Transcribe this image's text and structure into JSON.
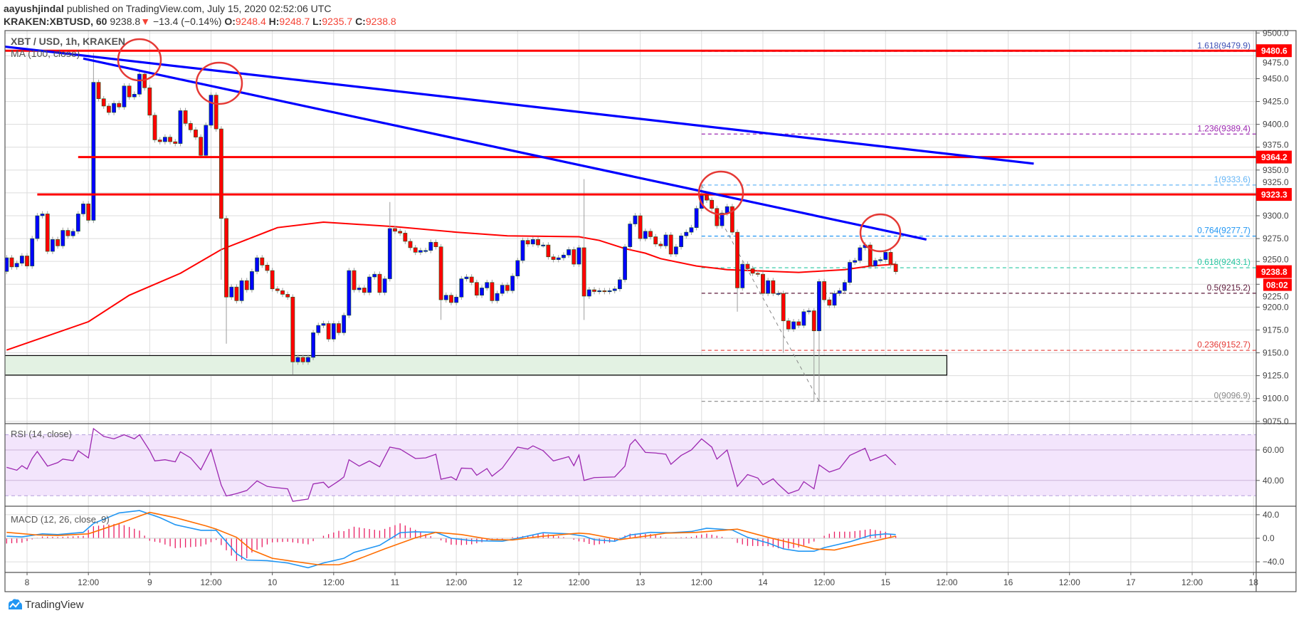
{
  "header": {
    "author": "aayushjindal",
    "published": "published on TradingView.com, July 15, 2020 02:52:06 UTC",
    "symbol": "KRAKEN:XBTUSD, 60",
    "last": "9238.8",
    "change": "−13.4 (−0.14%)",
    "o_label": "O:",
    "o": "9248.4",
    "h_label": "H:",
    "h": "9248.7",
    "l_label": "L:",
    "l": "9235.7",
    "c_label": "C:",
    "c": "9238.8"
  },
  "footer": {
    "brand": "TradingView"
  },
  "colors": {
    "up": "#0000ff",
    "down": "#ff0000",
    "ma": "#ff0000",
    "trend": "#0000ff",
    "level": "#ff0000",
    "rsi": "#9c27b0",
    "macd": "#2196f3",
    "signal": "#ff6d00",
    "hist": "#e91e63",
    "zone": "#e3f2e3"
  },
  "chart_data": {
    "type": "candlestick",
    "title": "XBT / USD, 1h, KRAKEN",
    "ma_label": "MA (100, close)",
    "ylim": [
      9075,
      9500
    ],
    "yticks": [
      "9500.0",
      "9475.0",
      "9450.0",
      "9425.0",
      "9400.0",
      "9375.0",
      "9350.0",
      "9325.0",
      "9300.0",
      "9275.0",
      "9250.0",
      "9225.0",
      "9200.0",
      "9175.0",
      "9150.0",
      "9125.0",
      "9100.0",
      "9075.0"
    ],
    "xticks": [
      {
        "i": 4,
        "label": "8"
      },
      {
        "i": 16,
        "label": "12:00"
      },
      {
        "i": 28,
        "label": "9"
      },
      {
        "i": 40,
        "label": "12:00"
      },
      {
        "i": 52,
        "label": "10"
      },
      {
        "i": 64,
        "label": "12:00"
      },
      {
        "i": 76,
        "label": "11"
      },
      {
        "i": 88,
        "label": "12:00"
      },
      {
        "i": 100,
        "label": "12"
      },
      {
        "i": 112,
        "label": "12:00"
      },
      {
        "i": 124,
        "label": "13"
      },
      {
        "i": 136,
        "label": "12:00"
      },
      {
        "i": 148,
        "label": "14"
      },
      {
        "i": 160,
        "label": "12:00"
      },
      {
        "i": 172,
        "label": "15"
      },
      {
        "i": 184,
        "label": "12:00"
      },
      {
        "i": 196,
        "label": "16"
      },
      {
        "i": 208,
        "label": "12:00"
      },
      {
        "i": 220,
        "label": "17"
      },
      {
        "i": 232,
        "label": "12:00"
      },
      {
        "i": 244,
        "label": "18"
      }
    ],
    "first_open": 9239,
    "closes": [
      9254,
      9244,
      9248,
      9256,
      9245,
      9275,
      9300,
      9302,
      9261,
      9274,
      9267,
      9284,
      9278,
      9283,
      9302,
      9313,
      9295,
      9446,
      9428,
      9420,
      9413,
      9423,
      9419,
      9442,
      9430,
      9433,
      9455,
      9440,
      9410,
      9383,
      9381,
      9386,
      9381,
      9379,
      9415,
      9401,
      9394,
      9386,
      9366,
      9399,
      9432,
      9395,
      9297,
      9211,
      9222,
      9207,
      9229,
      9219,
      9239,
      9254,
      9246,
      9240,
      9220,
      9218,
      9214,
      9211,
      9140,
      9145,
      9140,
      9145,
      9172,
      9180,
      9182,
      9165,
      9182,
      9172,
      9191,
      9240,
      9219,
      9221,
      9216,
      9233,
      9236,
      9216,
      9231,
      9286,
      9283,
      9281,
      9272,
      9265,
      9260,
      9262,
      9262,
      9271,
      9266,
      9208,
      9213,
      9205,
      9211,
      9231,
      9233,
      9227,
      9213,
      9221,
      9227,
      9207,
      9215,
      9224,
      9218,
      9234,
      9251,
      9273,
      9269,
      9274,
      9268,
      9268,
      9255,
      9252,
      9254,
      9257,
      9263,
      9247,
      9265,
      9212,
      9219,
      9217,
      9218,
      9217,
      9218,
      9220,
      9230,
      9266,
      9291,
      9300,
      9275,
      9283,
      9277,
      9269,
      9267,
      9279,
      9258,
      9266,
      9278,
      9282,
      9287,
      9308,
      9322,
      9317,
      9308,
      9289,
      9303,
      9310,
      9282,
      9221,
      9247,
      9242,
      9237,
      9236,
      9215,
      9229,
      9215,
      9215,
      9185,
      9176,
      9184,
      9180,
      9195,
      9196,
      9174,
      9228,
      9208,
      9202,
      9215,
      9218,
      9227,
      9249,
      9251,
      9265,
      9268,
      9245,
      9251,
      9252,
      9260,
      9247,
      9238.8
    ],
    "wick_extremes": [
      {
        "i": 17,
        "h": 9478
      },
      {
        "i": 42,
        "l": 9230
      },
      {
        "i": 43,
        "l": 9160
      },
      {
        "i": 56,
        "l": 9126
      },
      {
        "i": 75,
        "h": 9315
      },
      {
        "i": 85,
        "l": 9186
      },
      {
        "i": 113,
        "h": 9340,
        "l": 9186
      },
      {
        "i": 136,
        "h": 9333.6
      },
      {
        "i": 143,
        "l": 9195
      },
      {
        "i": 152,
        "l": 9150
      },
      {
        "i": 158,
        "l": 9097
      },
      {
        "i": 159,
        "l": 9097
      }
    ],
    "ma100": [
      [
        0,
        9153
      ],
      [
        16,
        9184
      ],
      [
        24,
        9213
      ],
      [
        34,
        9237
      ],
      [
        42,
        9263
      ],
      [
        53,
        9287
      ],
      [
        62,
        9293
      ],
      [
        76,
        9288
      ],
      [
        88,
        9282
      ],
      [
        98,
        9278
      ],
      [
        112,
        9277
      ],
      [
        116,
        9273
      ],
      [
        121,
        9264
      ],
      [
        125,
        9259
      ],
      [
        128,
        9253
      ],
      [
        135,
        9245
      ],
      [
        141,
        9241
      ],
      [
        155,
        9238
      ],
      [
        164,
        9241
      ],
      [
        169,
        9245
      ],
      [
        174,
        9247
      ]
    ],
    "trendlines": [
      [
        [
          -0.3,
          9485
        ],
        [
          201,
          9357
        ]
      ],
      [
        [
          15,
          9472
        ],
        [
          180,
          9274
        ]
      ]
    ],
    "levels": [
      {
        "price": 9480.6,
        "from": -1,
        "label": "9480.6"
      },
      {
        "price": 9364.2,
        "from": 14,
        "label": "9364.2"
      },
      {
        "price": 9323.3,
        "from": 6,
        "label": "9323.3"
      }
    ],
    "support_zone": {
      "from": -0.5,
      "to": 184,
      "low": 9125.6,
      "high": 9147
    },
    "fib": {
      "from": 136,
      "swing_high": [
        136,
        9333.6
      ],
      "swing_low": [
        159,
        9096.9
      ],
      "levels": [
        {
          "label": "1.618(9479.9)",
          "price": 9479.9,
          "color": "#3f51b5"
        },
        {
          "label": "1.236(9389.4)",
          "price": 9389.4,
          "color": "#9c27b0"
        },
        {
          "label": "1(9333.6)",
          "price": 9333.6,
          "color": "#64b5f6"
        },
        {
          "label": "0.764(9277.7)",
          "price": 9277.7,
          "color": "#2196f3"
        },
        {
          "label": "0.618(9243.1)",
          "price": 9243.1,
          "color": "#26c6a0"
        },
        {
          "label": "0.5(9215.2)",
          "price": 9215.2,
          "color": "#5d1a3a"
        },
        {
          "label": "0.236(9152.7)",
          "price": 9152.7,
          "color": "#e53935"
        },
        {
          "label": "0(9096.9)",
          "price": 9096.9,
          "color": "#888888"
        }
      ]
    },
    "last_price": {
      "value": 9238.8,
      "label": "9238.8",
      "countdown": "08:02"
    },
    "rsi": {
      "label": "RSI (14, close)",
      "ylim": [
        20,
        80
      ],
      "bands": [
        30,
        70
      ],
      "yticks": [
        "60.00",
        "40.00"
      ],
      "points": [
        [
          0,
          48.6
        ],
        [
          2,
          46.7
        ],
        [
          3,
          49.7
        ],
        [
          4,
          47.5
        ],
        [
          5,
          54.4
        ],
        [
          6,
          59
        ],
        [
          8,
          49.4
        ],
        [
          10,
          51.7
        ],
        [
          11,
          54
        ],
        [
          13,
          53
        ],
        [
          14,
          59.5
        ],
        [
          16,
          54.8
        ],
        [
          17,
          74
        ],
        [
          19,
          68.9
        ],
        [
          21,
          67.3
        ],
        [
          23,
          70
        ],
        [
          25,
          67.3
        ],
        [
          26,
          70
        ],
        [
          28,
          59.5
        ],
        [
          29,
          52.8
        ],
        [
          31,
          53.6
        ],
        [
          33,
          52.2
        ],
        [
          34,
          58.8
        ],
        [
          36,
          54.8
        ],
        [
          38,
          47
        ],
        [
          40,
          60.3
        ],
        [
          42,
          36.9
        ],
        [
          43,
          29.8
        ],
        [
          45,
          31.4
        ],
        [
          47,
          33.4
        ],
        [
          49,
          39.7
        ],
        [
          51,
          36.1
        ],
        [
          52,
          35.6
        ],
        [
          55,
          34.5
        ],
        [
          56,
          26.3
        ],
        [
          59,
          27.8
        ],
        [
          60,
          37.7
        ],
        [
          62,
          38.8
        ],
        [
          63,
          35.3
        ],
        [
          65,
          39.7
        ],
        [
          66,
          42.3
        ],
        [
          67,
          53.6
        ],
        [
          69,
          49.4
        ],
        [
          71,
          52.8
        ],
        [
          73,
          49
        ],
        [
          75,
          61.9
        ],
        [
          77,
          60.6
        ],
        [
          80,
          54.4
        ],
        [
          82,
          54.8
        ],
        [
          84,
          57.2
        ],
        [
          85,
          40.8
        ],
        [
          87,
          42.3
        ],
        [
          88,
          40.3
        ],
        [
          89,
          48.1
        ],
        [
          91,
          47.8
        ],
        [
          92,
          43.4
        ],
        [
          94,
          47.8
        ],
        [
          95,
          42.8
        ],
        [
          97,
          48.1
        ],
        [
          100,
          61.9
        ],
        [
          102,
          60.6
        ],
        [
          103,
          62.7
        ],
        [
          105,
          59.5
        ],
        [
          107,
          52.8
        ],
        [
          110,
          55.6
        ],
        [
          111,
          49.7
        ],
        [
          112,
          56.7
        ],
        [
          113,
          40
        ],
        [
          115,
          41.9
        ],
        [
          119,
          42.3
        ],
        [
          121,
          49.4
        ],
        [
          122,
          63.4
        ],
        [
          123,
          66.9
        ],
        [
          125,
          58.4
        ],
        [
          127,
          58
        ],
        [
          129,
          57.2
        ],
        [
          130,
          50.6
        ],
        [
          132,
          56.4
        ],
        [
          134,
          60
        ],
        [
          136,
          67.3
        ],
        [
          138,
          61.9
        ],
        [
          139,
          54
        ],
        [
          141,
          60
        ],
        [
          143,
          36.1
        ],
        [
          145,
          43.9
        ],
        [
          147,
          41.6
        ],
        [
          148,
          37.2
        ],
        [
          150,
          41.1
        ],
        [
          151,
          37.5
        ],
        [
          153,
          31.4
        ],
        [
          155,
          33.8
        ],
        [
          156,
          39.2
        ],
        [
          158,
          34.5
        ],
        [
          159,
          50.2
        ],
        [
          161,
          45.5
        ],
        [
          163,
          47.8
        ],
        [
          165,
          56.4
        ],
        [
          168,
          61.1
        ],
        [
          169,
          53
        ],
        [
          172,
          56.9
        ],
        [
          174,
          50.2
        ]
      ]
    },
    "macd": {
      "label": "MACD (12, 26, close, 9)",
      "ylim": [
        -58,
        58
      ],
      "yticks": [
        {
          "v": 40,
          "label": "40.0"
        },
        {
          "v": 0,
          "label": "0.0"
        },
        {
          "v": -40,
          "label": "−40.0"
        }
      ],
      "macd_line": [
        [
          0,
          3.6
        ],
        [
          3,
          2.4
        ],
        [
          7,
          7.5
        ],
        [
          10,
          6.3
        ],
        [
          15,
          10
        ],
        [
          17,
          25
        ],
        [
          22,
          43
        ],
        [
          26,
          47
        ],
        [
          30,
          35
        ],
        [
          33,
          23
        ],
        [
          38,
          13.5
        ],
        [
          41,
          13.5
        ],
        [
          43,
          -6
        ],
        [
          45,
          -26
        ],
        [
          47,
          -37
        ],
        [
          51,
          -38
        ],
        [
          55,
          -42
        ],
        [
          59,
          -50
        ],
        [
          62,
          -42
        ],
        [
          66,
          -34
        ],
        [
          68,
          -24
        ],
        [
          73,
          -12
        ],
        [
          77,
          9.5
        ],
        [
          80,
          11
        ],
        [
          84,
          10
        ],
        [
          87,
          0
        ],
        [
          91,
          -4
        ],
        [
          97,
          -5
        ],
        [
          100,
          0
        ],
        [
          105,
          9.5
        ],
        [
          110,
          7.5
        ],
        [
          113,
          3.6
        ],
        [
          115,
          -2.4
        ],
        [
          119,
          -5
        ],
        [
          122,
          5.6
        ],
        [
          126,
          10
        ],
        [
          130,
          9.5
        ],
        [
          134,
          11.5
        ],
        [
          137,
          17
        ],
        [
          142,
          14
        ],
        [
          145,
          1.6
        ],
        [
          149,
          -8
        ],
        [
          152,
          -18
        ],
        [
          155,
          -22
        ],
        [
          158,
          -22
        ],
        [
          160,
          -16
        ],
        [
          165,
          -6
        ],
        [
          169,
          4.8
        ],
        [
          172,
          7.5
        ],
        [
          174,
          6.3
        ]
      ],
      "signal_line": [
        [
          0,
          10
        ],
        [
          6,
          5.6
        ],
        [
          10,
          4.8
        ],
        [
          16,
          7.5
        ],
        [
          22,
          25
        ],
        [
          28,
          44
        ],
        [
          33,
          35
        ],
        [
          39,
          21
        ],
        [
          41,
          15.5
        ],
        [
          45,
          1.6
        ],
        [
          48,
          -20
        ],
        [
          52,
          -34
        ],
        [
          56,
          -39
        ],
        [
          61,
          -45
        ],
        [
          65,
          -45
        ],
        [
          68,
          -38
        ],
        [
          74,
          -18
        ],
        [
          80,
          0.8
        ],
        [
          84,
          10
        ],
        [
          89,
          6.3
        ],
        [
          95,
          -2.4
        ],
        [
          99,
          -3
        ],
        [
          105,
          3.6
        ],
        [
          112,
          8.7
        ],
        [
          114,
          7.5
        ],
        [
          120,
          -2.4
        ],
        [
          125,
          3.6
        ],
        [
          129,
          8.7
        ],
        [
          135,
          10
        ],
        [
          143,
          15.5
        ],
        [
          149,
          1.6
        ],
        [
          155,
          -11
        ],
        [
          158,
          -18
        ],
        [
          162,
          -20
        ],
        [
          166,
          -12
        ],
        [
          171,
          -2.4
        ],
        [
          174,
          3.6
        ]
      ]
    }
  }
}
